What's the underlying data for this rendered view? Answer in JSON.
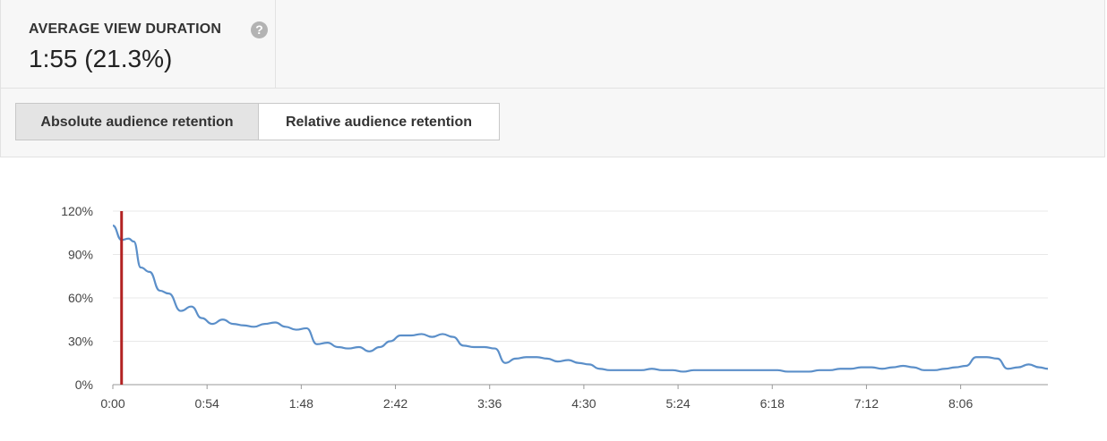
{
  "metric": {
    "label": "AVERAGE VIEW DURATION",
    "help_icon": "question-circle-icon",
    "value": "1:55 (21.3%)"
  },
  "tabs": [
    {
      "label": "Absolute audience retention",
      "active": true
    },
    {
      "label": "Relative audience retention",
      "active": false
    }
  ],
  "colors": {
    "line": "#5b8fc9",
    "marker": "#b22222",
    "grid": "#e8e8e8",
    "axis": "#999999"
  },
  "chart_data": {
    "type": "line",
    "title": "",
    "xlabel": "",
    "ylabel": "",
    "y_ticks": [
      "0%",
      "30%",
      "60%",
      "90%",
      "120%"
    ],
    "y_tick_values": [
      0,
      30,
      60,
      90,
      120
    ],
    "x_ticks": [
      "0:00",
      "0:54",
      "1:48",
      "2:42",
      "3:36",
      "4:30",
      "5:24",
      "6:18",
      "7:12",
      "8:06"
    ],
    "x_tick_values": [
      0,
      54,
      108,
      162,
      216,
      270,
      324,
      378,
      432,
      486
    ],
    "xlim": [
      0,
      536
    ],
    "ylim": [
      0,
      120
    ],
    "marker_x": 5,
    "grid": true,
    "series": [
      {
        "x": [
          0,
          5,
          9,
          12,
          16,
          21,
          27,
          32,
          39,
          45,
          51,
          57,
          63,
          69,
          75,
          81,
          87,
          93,
          99,
          105,
          111,
          117,
          123,
          129,
          135,
          141,
          147,
          153,
          159,
          165,
          171,
          177,
          183,
          189,
          195,
          201,
          207,
          213,
          219,
          225,
          231,
          237,
          243,
          249,
          255,
          261,
          267,
          273,
          279,
          285,
          291,
          297,
          303,
          309,
          315,
          321,
          327,
          333,
          339,
          345,
          351,
          357,
          363,
          369,
          375,
          381,
          387,
          393,
          399,
          405,
          411,
          417,
          423,
          429,
          435,
          441,
          447,
          453,
          459,
          465,
          471,
          477,
          483,
          489,
          495,
          501,
          507,
          513,
          519,
          525,
          531,
          536
        ],
        "values": [
          110,
          100,
          101,
          99,
          81,
          78,
          65,
          63,
          51,
          54,
          46,
          42,
          45,
          42,
          41,
          40,
          42,
          43,
          40,
          38,
          39,
          28,
          29,
          26,
          25,
          26,
          23,
          26,
          30,
          34,
          34,
          35,
          33,
          35,
          33,
          27,
          26,
          26,
          25,
          15,
          18,
          19,
          19,
          18,
          16,
          17,
          15,
          14,
          11,
          10,
          10,
          10,
          10,
          11,
          10,
          10,
          9,
          10,
          10,
          10,
          10,
          10,
          10,
          10,
          10,
          10,
          9,
          9,
          9,
          10,
          10,
          11,
          11,
          12,
          12,
          11,
          12,
          13,
          12,
          10,
          10,
          11,
          12,
          13,
          19,
          19,
          18,
          11,
          12,
          14,
          12,
          11
        ]
      }
    ]
  }
}
